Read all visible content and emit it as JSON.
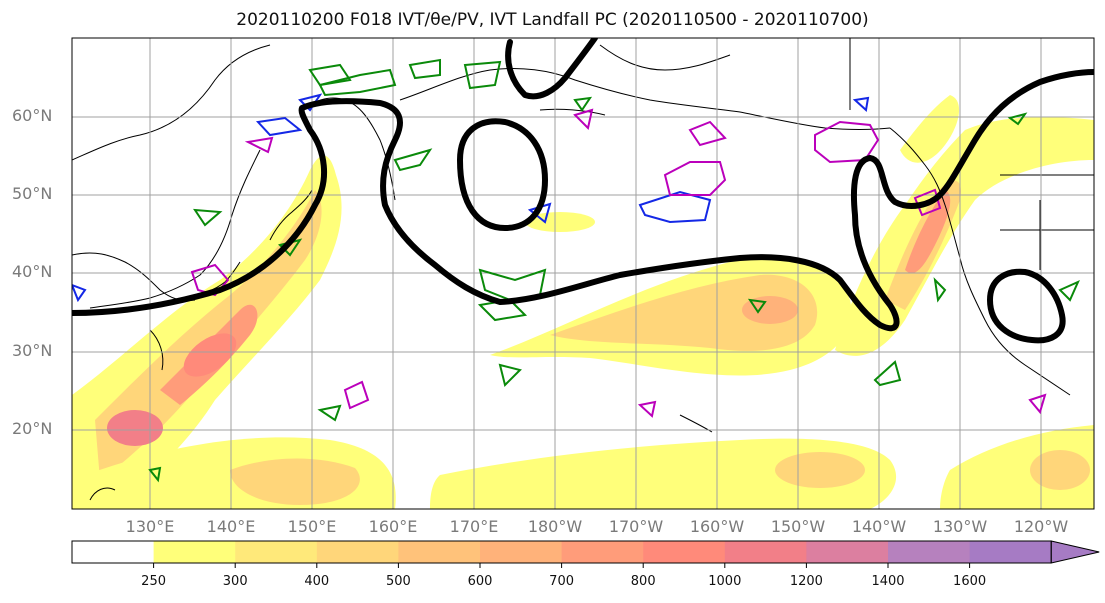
{
  "title": "2020110200 F018 IVT/θe/PV, IVT Landfall PC (2020110500 - 2020110700)",
  "map": {
    "lat_labels": [
      "60°N",
      "50°N",
      "40°N",
      "30°N",
      "20°N"
    ],
    "lon_labels": [
      "130°E",
      "140°E",
      "150°E",
      "160°E",
      "170°E",
      "180°W",
      "170°W",
      "160°W",
      "150°W",
      "140°W",
      "130°W",
      "120°W"
    ]
  },
  "colorbar": {
    "levels": [
      "250",
      "300",
      "400",
      "500",
      "600",
      "700",
      "800",
      "1000",
      "1200",
      "1400",
      "1600"
    ],
    "colors": [
      "#ffffff",
      "#ffff7a",
      "#ffe97a",
      "#ffd67a",
      "#ffc27a",
      "#ffb27a",
      "#ff9c7a",
      "#ff8a7a",
      "#f27f88",
      "#dc7fa0",
      "#b681be",
      "#a67bc4"
    ]
  },
  "overlay_colors": {
    "pc_contour": "#000000",
    "contour_green": "#0a8a0a",
    "contour_blue": "#1428e6",
    "contour_magenta": "#bb00bb",
    "coastline": "#000000"
  }
}
